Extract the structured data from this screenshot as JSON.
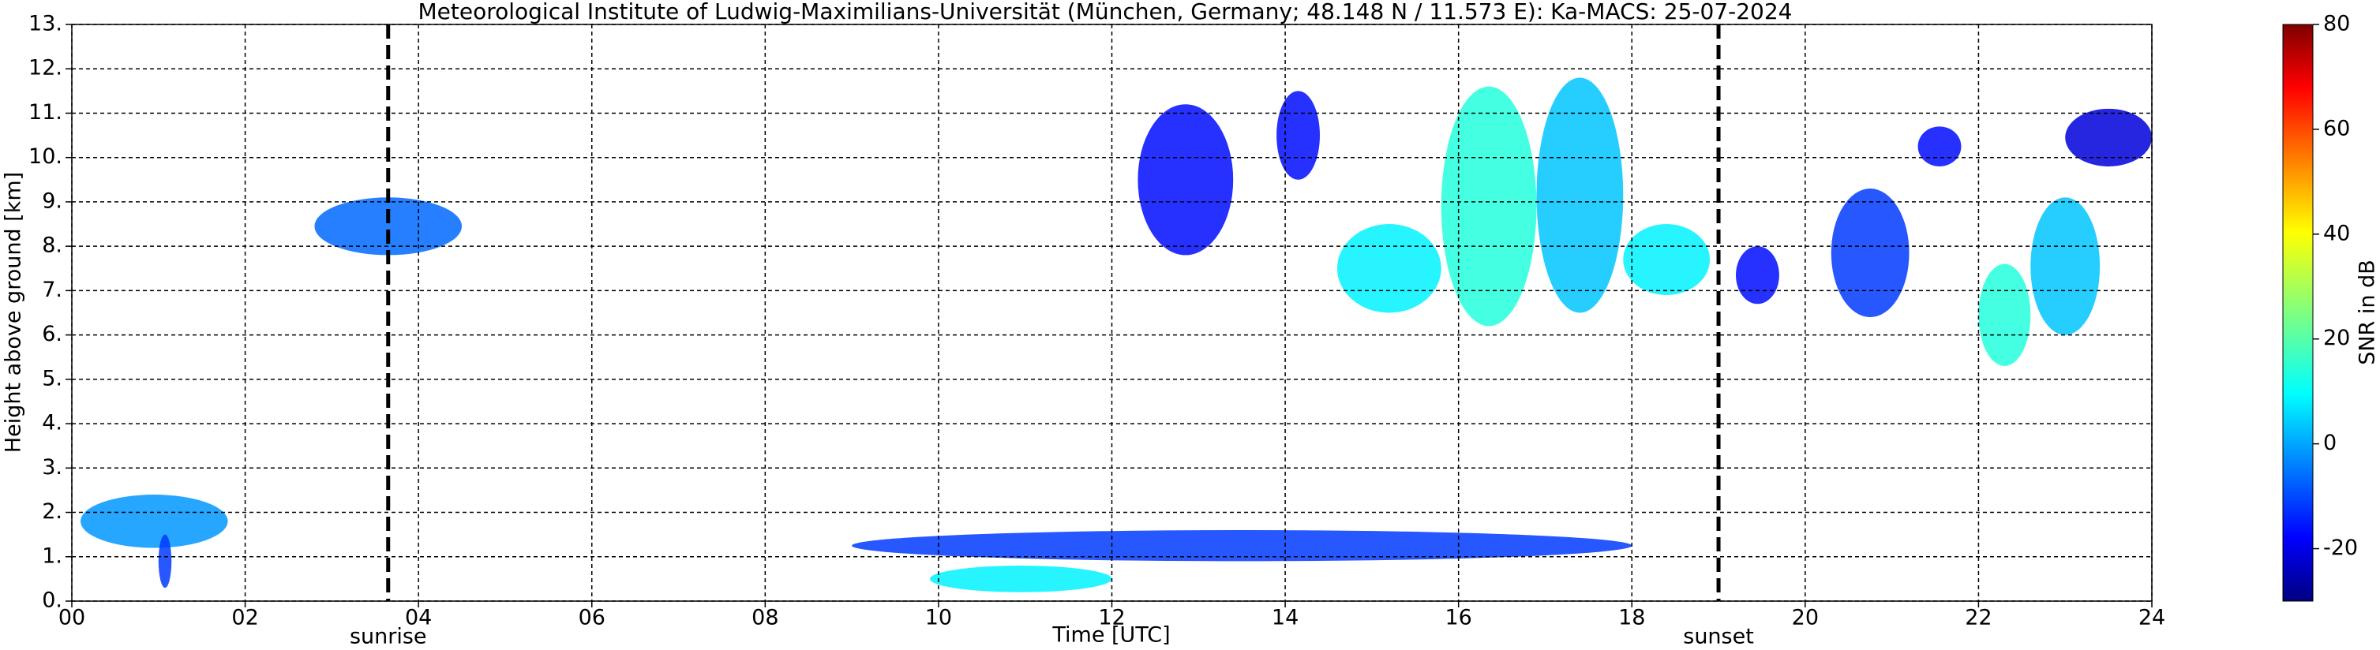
{
  "chart_data": {
    "type": "time-height",
    "title": "Meteorological Institute of Ludwig-Maximilians-Universität (München, Germany; 48.148 N / 11.573 E):    Ka-MACS: 25-07-2024",
    "xlabel": "Time [UTC]",
    "ylabel": "Height above ground [km]",
    "xlim": [
      0,
      24
    ],
    "xticks": [
      {
        "value": 0,
        "label": "00"
      },
      {
        "value": 2,
        "label": "02"
      },
      {
        "value": 4,
        "label": "04"
      },
      {
        "value": 6,
        "label": "06"
      },
      {
        "value": 8,
        "label": "08"
      },
      {
        "value": 10,
        "label": "10"
      },
      {
        "value": 12,
        "label": "12"
      },
      {
        "value": 14,
        "label": "14"
      },
      {
        "value": 16,
        "label": "16"
      },
      {
        "value": 18,
        "label": "18"
      },
      {
        "value": 20,
        "label": "20"
      },
      {
        "value": 22,
        "label": "22"
      },
      {
        "value": 24,
        "label": "24"
      }
    ],
    "ylim": [
      0,
      13
    ],
    "yticks": [
      {
        "value": 0,
        "label": "0."
      },
      {
        "value": 1,
        "label": "1."
      },
      {
        "value": 2,
        "label": "2."
      },
      {
        "value": 3,
        "label": "3."
      },
      {
        "value": 4,
        "label": "4."
      },
      {
        "value": 5,
        "label": "5."
      },
      {
        "value": 6,
        "label": "6."
      },
      {
        "value": 7,
        "label": "7."
      },
      {
        "value": 8,
        "label": "8."
      },
      {
        "value": 9,
        "label": "9."
      },
      {
        "value": 10,
        "label": "10."
      },
      {
        "value": 11,
        "label": "11."
      },
      {
        "value": 12,
        "label": "12."
      },
      {
        "value": 13,
        "label": "13."
      }
    ],
    "grid": true,
    "colorbar": {
      "label": "SNR in dB",
      "lim": [
        -30,
        80
      ],
      "ticks": [
        -20,
        0,
        20,
        40,
        60,
        80
      ],
      "colormap": "jet"
    },
    "annotations": [
      {
        "text": "sunrise",
        "x": 3.65
      },
      {
        "text": "sunset",
        "x": 19.0
      }
    ],
    "echoes": [
      {
        "t0": 2.8,
        "t1": 4.5,
        "h0": 7.8,
        "h1": 9.1,
        "snr": -5
      },
      {
        "t0": 0.1,
        "t1": 1.8,
        "h0": 1.2,
        "h1": 2.4,
        "snr": 0
      },
      {
        "t0": 1.0,
        "t1": 1.15,
        "h0": 0.3,
        "h1": 1.5,
        "snr": -10
      },
      {
        "t0": 12.3,
        "t1": 13.4,
        "h0": 7.8,
        "h1": 11.2,
        "snr": -15
      },
      {
        "t0": 13.9,
        "t1": 14.4,
        "h0": 9.5,
        "h1": 11.5,
        "snr": -15
      },
      {
        "t0": 14.6,
        "t1": 15.8,
        "h0": 6.5,
        "h1": 8.5,
        "snr": 10
      },
      {
        "t0": 15.8,
        "t1": 16.9,
        "h0": 6.2,
        "h1": 11.6,
        "snr": 15
      },
      {
        "t0": 16.9,
        "t1": 17.9,
        "h0": 6.5,
        "h1": 11.8,
        "snr": 5
      },
      {
        "t0": 17.9,
        "t1": 18.9,
        "h0": 6.9,
        "h1": 8.5,
        "snr": 10
      },
      {
        "t0": 19.2,
        "t1": 19.7,
        "h0": 6.7,
        "h1": 8.0,
        "snr": -15
      },
      {
        "t0": 20.3,
        "t1": 21.2,
        "h0": 6.4,
        "h1": 9.3,
        "snr": -10
      },
      {
        "t0": 21.3,
        "t1": 21.8,
        "h0": 9.8,
        "h1": 10.7,
        "snr": -15
      },
      {
        "t0": 22.0,
        "t1": 22.6,
        "h0": 5.3,
        "h1": 7.6,
        "snr": 15
      },
      {
        "t0": 22.6,
        "t1": 23.4,
        "h0": 6.0,
        "h1": 9.1,
        "snr": 5
      },
      {
        "t0": 23.0,
        "t1": 24.0,
        "h0": 9.8,
        "h1": 11.1,
        "snr": -20
      },
      {
        "t0": 9.0,
        "t1": 18.0,
        "h0": 0.9,
        "h1": 1.6,
        "snr": -10
      },
      {
        "t0": 9.9,
        "t1": 12.0,
        "h0": 0.2,
        "h1": 0.8,
        "snr": 10
      }
    ]
  }
}
